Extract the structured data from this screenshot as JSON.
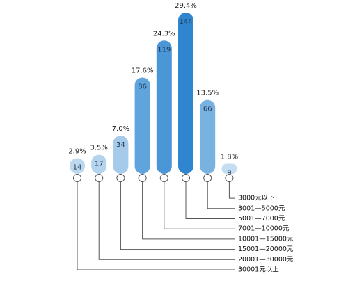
{
  "chart_data": {
    "type": "bar",
    "categories": [
      "30001元以上",
      "20001—30000元",
      "15001—20000元",
      "10001—15000元",
      "7001—10000元",
      "5001—7000元",
      "3001—5000元",
      "3000元以下"
    ],
    "values": [
      14,
      17,
      34,
      86,
      119,
      144,
      66,
      9
    ],
    "percentages": [
      2.9,
      3.5,
      7.0,
      17.6,
      24.3,
      29.4,
      13.5,
      1.8
    ],
    "percentage_labels": [
      "2.9%",
      "3.5%",
      "7.0%",
      "17.6%",
      "24.3%",
      "29.4%",
      "13.5%",
      "1.8%"
    ],
    "colors": [
      "#bcd8ef",
      "#b4d3ed",
      "#a6cbea",
      "#5fa4dc",
      "#4a96d6",
      "#2f86cf",
      "#78b2e1",
      "#c4ddf1"
    ]
  }
}
